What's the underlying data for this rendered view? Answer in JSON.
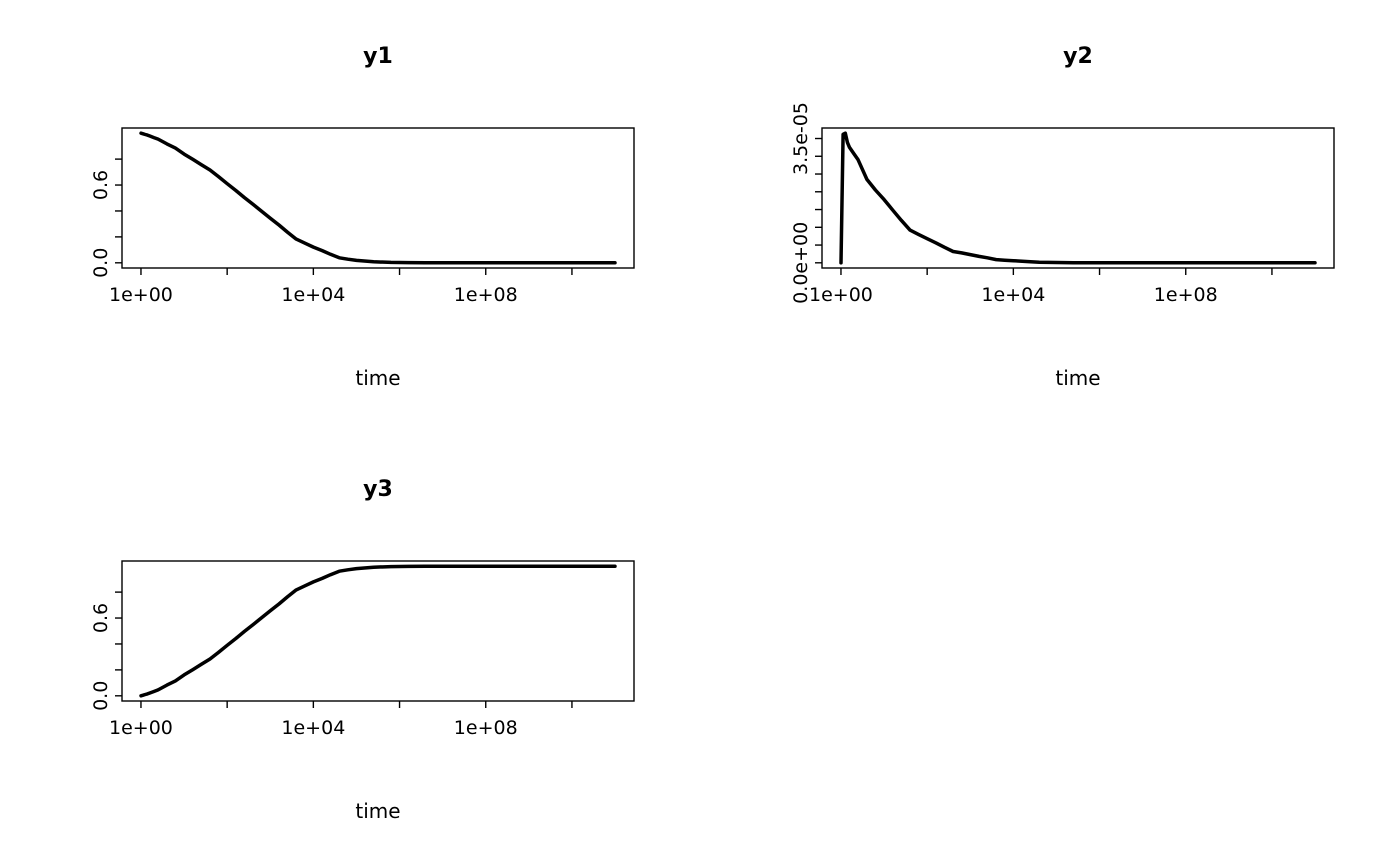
{
  "page": {
    "background": "#ffffff"
  },
  "style": {
    "line_color": "#000000",
    "axis_color": "#000000",
    "line_width": 3.5,
    "tick_font_size": 19
  },
  "chart_data": [
    {
      "type": "line",
      "title": "y1",
      "xlabel": "time",
      "ylabel": "",
      "x_scale": "log10",
      "xlim": [
        1,
        100000000000.0
      ],
      "ylim": [
        0,
        1
      ],
      "grid": false,
      "legend": "none",
      "x_ticks": [
        {
          "value": 1,
          "label": "1e+00"
        },
        {
          "value": 100,
          "label": ""
        },
        {
          "value": 10000,
          "label": "1e+04"
        },
        {
          "value": 1000000,
          "label": ""
        },
        {
          "value": 100000000,
          "label": "1e+08"
        },
        {
          "value": 10000000000,
          "label": ""
        }
      ],
      "y_ticks": [
        {
          "value": 0,
          "label": "0.0"
        },
        {
          "value": 0.2,
          "label": ""
        },
        {
          "value": 0.4,
          "label": ""
        },
        {
          "value": 0.6,
          "label": "0.6"
        },
        {
          "value": 0.8,
          "label": ""
        }
      ],
      "x": [
        1,
        1.12,
        1.26,
        1.41,
        1.58,
        2,
        2.5,
        4,
        6.3,
        10,
        16,
        25,
        40,
        63,
        100,
        160,
        250,
        400,
        630,
        1000,
        1600,
        2500,
        4000,
        6300,
        10000,
        16000,
        25000,
        40000,
        63000,
        100000,
        250000,
        630000,
        1600000,
        4000000,
        10000000,
        100000000,
        1000000000,
        10000000000,
        100000000000
      ],
      "y": [
        1,
        0.995,
        0.99,
        0.985,
        0.979,
        0.966,
        0.954,
        0.917,
        0.885,
        0.839,
        0.798,
        0.758,
        0.716,
        0.665,
        0.61,
        0.557,
        0.504,
        0.451,
        0.398,
        0.344,
        0.291,
        0.237,
        0.183,
        0.152,
        0.121,
        0.094,
        0.066,
        0.039,
        0.028,
        0.0185,
        0.0075,
        0.0033,
        0.0014,
        0.00052,
        0.00021,
        2e-05,
        2e-06,
        2e-07,
        0
      ]
    },
    {
      "type": "line",
      "title": "y2",
      "xlabel": "time",
      "ylabel": "",
      "x_scale": "log10",
      "xlim": [
        1,
        100000000000.0
      ],
      "ylim": [
        0,
        3.65e-05
      ],
      "grid": false,
      "legend": "none",
      "x_ticks": [
        {
          "value": 1,
          "label": "1e+00"
        },
        {
          "value": 100,
          "label": ""
        },
        {
          "value": 10000,
          "label": "1e+04"
        },
        {
          "value": 1000000,
          "label": ""
        },
        {
          "value": 100000000,
          "label": "1e+08"
        },
        {
          "value": 10000000000,
          "label": ""
        }
      ],
      "y_ticks": [
        {
          "value": 0,
          "label": "0.0e+00"
        },
        {
          "value": 5e-06,
          "label": ""
        },
        {
          "value": 1e-05,
          "label": ""
        },
        {
          "value": 1.5e-05,
          "label": ""
        },
        {
          "value": 2e-05,
          "label": ""
        },
        {
          "value": 2.5e-05,
          "label": ""
        },
        {
          "value": 3e-05,
          "label": ""
        },
        {
          "value": 3.5e-05,
          "label": "3.5e-05"
        }
      ],
      "x": [
        1,
        1.12,
        1.26,
        1.41,
        1.58,
        2,
        2.5,
        4,
        6.3,
        10,
        16,
        25,
        40,
        63,
        100,
        160,
        250,
        400,
        630,
        1000,
        1600,
        2500,
        4000,
        6300,
        10000,
        16000,
        25000,
        40000,
        63000,
        100000,
        250000,
        630000,
        1600000,
        4000000,
        10000000,
        100000000,
        1000000000,
        10000000000,
        100000000000
      ],
      "y": [
        0,
        3.62e-05,
        3.65e-05,
        3.39e-05,
        3.25e-05,
        3.07e-05,
        2.9e-05,
        2.35e-05,
        2.05e-05,
        1.78e-05,
        1.48e-05,
        1.2e-05,
        9.2e-06,
        8e-06,
        6.8e-06,
        5.6e-06,
        4.4e-06,
        3.2e-06,
        2.8e-06,
        2.3e-06,
        1.8e-06,
        1.4e-06,
        9e-07,
        7.5e-07,
        6e-07,
        4.6e-07,
        3.1e-07,
        1.6e-07,
        1.2e-07,
        8e-08,
        3.5e-08,
        1.4e-08,
        5e-09,
        2e-09,
        8e-10,
        8e-11,
        0,
        0,
        0
      ]
    },
    {
      "type": "line",
      "title": "y3",
      "xlabel": "time",
      "ylabel": "",
      "x_scale": "log10",
      "xlim": [
        1,
        100000000000.0
      ],
      "ylim": [
        0,
        1
      ],
      "grid": false,
      "legend": "none",
      "x_ticks": [
        {
          "value": 1,
          "label": "1e+00"
        },
        {
          "value": 100,
          "label": ""
        },
        {
          "value": 10000,
          "label": "1e+04"
        },
        {
          "value": 1000000,
          "label": ""
        },
        {
          "value": 100000000,
          "label": "1e+08"
        },
        {
          "value": 10000000000,
          "label": ""
        }
      ],
      "y_ticks": [
        {
          "value": 0,
          "label": "0.0"
        },
        {
          "value": 0.2,
          "label": ""
        },
        {
          "value": 0.4,
          "label": ""
        },
        {
          "value": 0.6,
          "label": "0.6"
        },
        {
          "value": 0.8,
          "label": ""
        }
      ],
      "x": [
        1,
        1.12,
        1.26,
        1.41,
        1.58,
        2,
        2.5,
        4,
        6.3,
        10,
        16,
        25,
        40,
        63,
        100,
        160,
        250,
        400,
        630,
        1000,
        1600,
        2500,
        4000,
        6300,
        10000,
        16000,
        25000,
        40000,
        63000,
        100000,
        250000,
        630000,
        1600000,
        4000000,
        10000000,
        100000000,
        1000000000,
        10000000000,
        100000000000
      ],
      "y": [
        0,
        0.005,
        0.01,
        0.015,
        0.021,
        0.0335,
        0.046,
        0.083,
        0.115,
        0.161,
        0.202,
        0.242,
        0.284,
        0.335,
        0.39,
        0.443,
        0.496,
        0.549,
        0.602,
        0.656,
        0.709,
        0.763,
        0.817,
        0.848,
        0.879,
        0.906,
        0.934,
        0.961,
        0.972,
        0.9815,
        0.9925,
        0.9967,
        0.9986,
        0.9995,
        0.9998,
        0.99998,
        0.999998,
        1,
        1
      ]
    }
  ]
}
